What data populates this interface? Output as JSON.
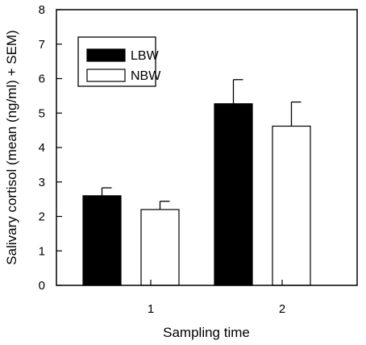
{
  "chart_data": {
    "type": "bar",
    "categories": [
      "1",
      "2"
    ],
    "series": [
      {
        "name": "LBW",
        "color": "#000000",
        "values": [
          2.6,
          5.27
        ],
        "errors": [
          0.23,
          0.7
        ]
      },
      {
        "name": "NBW",
        "color": "#ffffff",
        "values": [
          2.2,
          4.62
        ],
        "errors": [
          0.24,
          0.7
        ]
      }
    ],
    "title": "",
    "xlabel": "Sampling time",
    "ylabel": "Salivary cortisol (mean (ng/ml) + SEM)",
    "ylim": [
      0,
      8
    ],
    "yticks": [
      "0",
      "1",
      "2",
      "3",
      "4",
      "5",
      "6",
      "7",
      "8"
    ],
    "grid": false,
    "legend_position": "top-left"
  }
}
